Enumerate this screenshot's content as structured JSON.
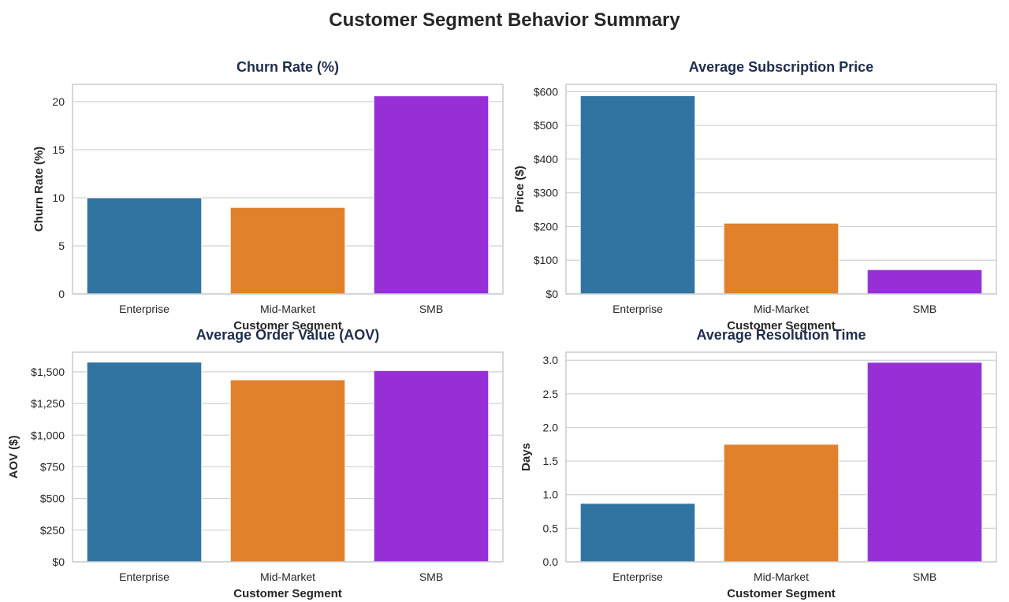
{
  "figure_title": "Customer Segment Behavior Summary",
  "colors": {
    "Enterprise": "#3274a1",
    "Mid-Market": "#e1812c",
    "SMB": "#9630d6"
  },
  "chart_data": [
    {
      "type": "bar",
      "title": "Churn Rate (%)",
      "xlabel": "Customer Segment",
      "ylabel": "Churn Rate (%)",
      "categories": [
        "Enterprise",
        "Mid-Market",
        "SMB"
      ],
      "values": [
        10.0,
        9.0,
        20.6
      ],
      "ylim": [
        0,
        21.8
      ],
      "yticks": [
        0,
        5,
        10,
        15,
        20
      ],
      "ytick_labels": [
        "0",
        "5",
        "10",
        "15",
        "20"
      ],
      "grid": true
    },
    {
      "type": "bar",
      "title": "Average Subscription Price",
      "xlabel": "Customer Segment",
      "ylabel": "Price ($)",
      "categories": [
        "Enterprise",
        "Mid-Market",
        "SMB"
      ],
      "values": [
        588,
        210,
        72
      ],
      "ylim": [
        0,
        622
      ],
      "yticks": [
        0,
        100,
        200,
        300,
        400,
        500,
        600
      ],
      "ytick_labels": [
        "$0",
        "$100",
        "$200",
        "$300",
        "$400",
        "$500",
        "$600"
      ],
      "grid": true
    },
    {
      "type": "bar",
      "title": "Average Order Value (AOV)",
      "xlabel": "Customer Segment",
      "ylabel": "AOV ($)",
      "categories": [
        "Enterprise",
        "Mid-Market",
        "SMB"
      ],
      "values": [
        1577,
        1437,
        1510
      ],
      "ylim": [
        0,
        1655
      ],
      "yticks": [
        0,
        250,
        500,
        750,
        1000,
        1250,
        1500
      ],
      "ytick_labels": [
        "$0",
        "$250",
        "$500",
        "$750",
        "$1,000",
        "$1,250",
        "$1,500"
      ],
      "grid": true
    },
    {
      "type": "bar",
      "title": "Average Resolution Time",
      "xlabel": "Customer Segment",
      "ylabel": "Days",
      "categories": [
        "Enterprise",
        "Mid-Market",
        "SMB"
      ],
      "values": [
        0.87,
        1.75,
        2.97
      ],
      "ylim": [
        0,
        3.12
      ],
      "yticks": [
        0.0,
        0.5,
        1.0,
        1.5,
        2.0,
        2.5,
        3.0
      ],
      "ytick_labels": [
        "0.0",
        "0.5",
        "1.0",
        "1.5",
        "2.0",
        "2.5",
        "3.0"
      ],
      "grid": true
    }
  ]
}
